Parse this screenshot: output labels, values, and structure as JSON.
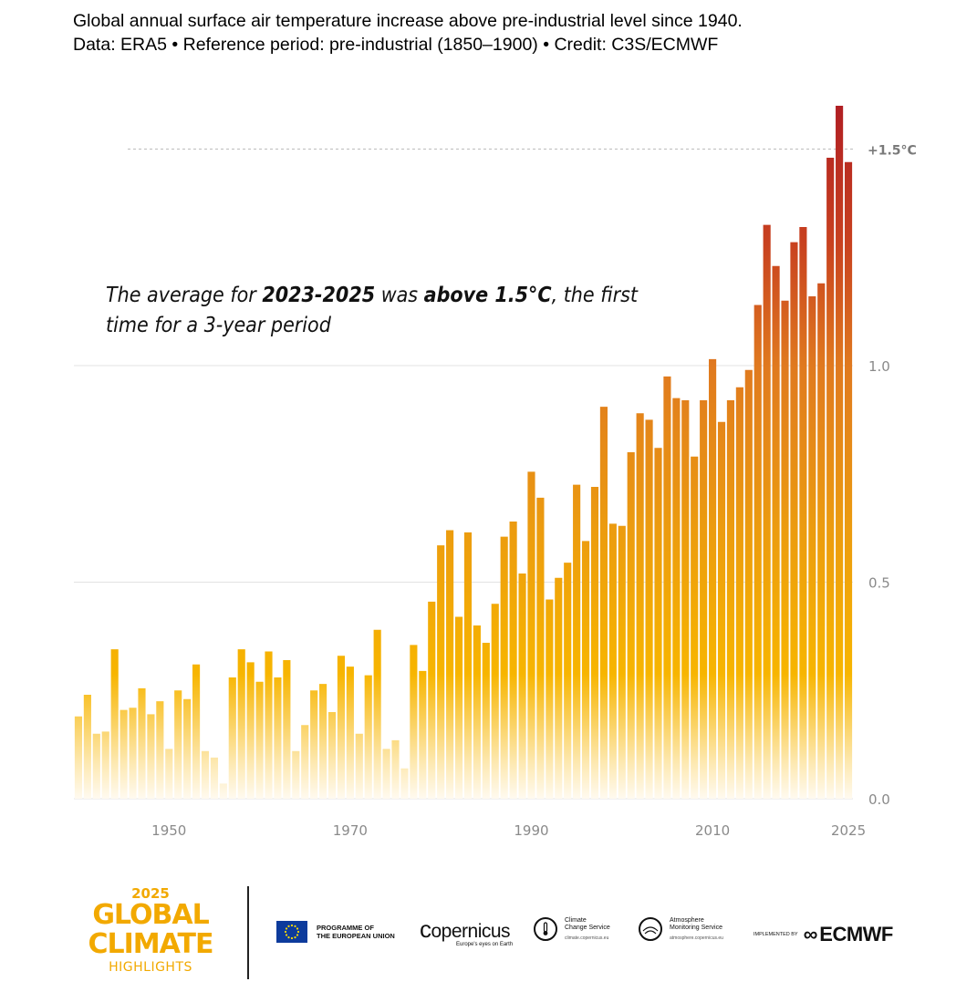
{
  "header": {
    "title": "Global annual surface air temperature increase above pre-industrial level since 1940.",
    "subtitle": "Data: ERA5 • Reference period: pre-industrial (1850–1900) • Credit: C3S/ECMWF"
  },
  "annotation": {
    "part1": "The average for ",
    "bold1": "2023-2025",
    "part2": " was ",
    "bold2": "above 1.5°C",
    "part3": ", the first time for a 3-year period"
  },
  "footer": {
    "year": "2025",
    "line1": "GLOBAL",
    "line2": "CLIMATE",
    "line3": "HIGHLIGHTS",
    "eu_line1": "PROGRAMME OF",
    "eu_line2": "THE EUROPEAN UNION",
    "copernicus": "opernicus",
    "copernicus_tag": "Europe's eyes on Earth",
    "c3s_line1": "Climate",
    "c3s_line2": "Change Service",
    "c3s_url": "climate.copernicus.eu",
    "cams_line1": "Atmosphere",
    "cams_line2": "Monitoring Service",
    "cams_url": "atmosphere.copernicus.eu",
    "impl": "IMPLEMENTED BY",
    "ecmwf": "ECMWF"
  },
  "colors": {
    "low": "#f7b500",
    "mid": "#e07a1f",
    "high": "#b01e23",
    "axis_text": "#8a8a8a",
    "grid": "#e3e3e3",
    "brand_yellow": "#f2a900"
  },
  "chart_data": {
    "type": "bar",
    "x": [
      1940,
      1941,
      1942,
      1943,
      1944,
      1945,
      1946,
      1947,
      1948,
      1949,
      1950,
      1951,
      1952,
      1953,
      1954,
      1955,
      1956,
      1957,
      1958,
      1959,
      1960,
      1961,
      1962,
      1963,
      1964,
      1965,
      1966,
      1967,
      1968,
      1969,
      1970,
      1971,
      1972,
      1973,
      1974,
      1975,
      1976,
      1977,
      1978,
      1979,
      1980,
      1981,
      1982,
      1983,
      1984,
      1985,
      1986,
      1987,
      1988,
      1989,
      1990,
      1991,
      1992,
      1993,
      1994,
      1995,
      1996,
      1997,
      1998,
      1999,
      2000,
      2001,
      2002,
      2003,
      2004,
      2005,
      2006,
      2007,
      2008,
      2009,
      2010,
      2011,
      2012,
      2013,
      2014,
      2015,
      2016,
      2017,
      2018,
      2019,
      2020,
      2021,
      2022,
      2023,
      2024,
      2025
    ],
    "values": [
      0.19,
      0.24,
      0.15,
      0.155,
      0.345,
      0.205,
      0.21,
      0.255,
      0.195,
      0.225,
      0.115,
      0.25,
      0.23,
      0.31,
      0.11,
      0.095,
      0.035,
      0.28,
      0.345,
      0.315,
      0.27,
      0.34,
      0.28,
      0.32,
      0.11,
      0.17,
      0.25,
      0.265,
      0.2,
      0.33,
      0.305,
      0.15,
      0.285,
      0.39,
      0.115,
      0.135,
      0.07,
      0.355,
      0.295,
      0.455,
      0.585,
      0.62,
      0.42,
      0.615,
      0.4,
      0.36,
      0.45,
      0.605,
      0.64,
      0.52,
      0.755,
      0.695,
      0.46,
      0.51,
      0.545,
      0.725,
      0.595,
      0.72,
      0.905,
      0.635,
      0.63,
      0.8,
      0.89,
      0.875,
      0.81,
      0.975,
      0.925,
      0.92,
      0.79,
      0.92,
      1.015,
      0.87,
      0.92,
      0.95,
      0.99,
      1.14,
      1.325,
      1.23,
      1.15,
      1.285,
      1.32,
      1.16,
      1.19,
      1.48,
      1.6,
      1.47
    ],
    "x_ticks": [
      1950,
      1970,
      1990,
      2010,
      2025
    ],
    "y_ticks": [
      0.0,
      0.5,
      1.0
    ],
    "y_tick_labels": [
      "0.0",
      "0.5",
      "1.0"
    ],
    "threshold": 1.5,
    "threshold_label": "+1.5°C",
    "ylim": [
      0,
      1.62
    ],
    "grid": true
  }
}
